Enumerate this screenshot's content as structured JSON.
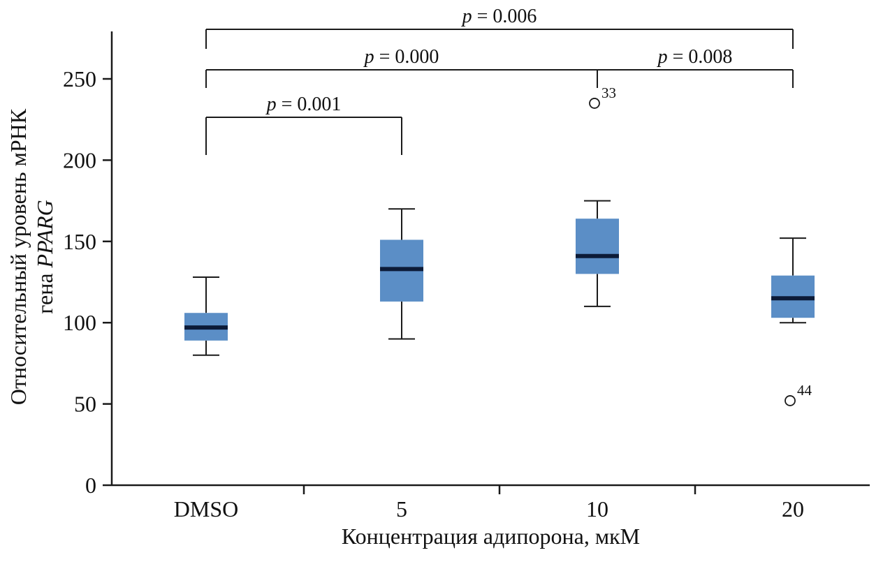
{
  "chart_data": {
    "type": "boxplot",
    "title": "",
    "xlabel": "Концентрация адипорона, мкМ",
    "ylabel_line1": "Относительный уровень мРНК",
    "ylabel_line2_prefix": "гена ",
    "ylabel_gene": "PPARG",
    "categories": [
      "DMSO",
      "5",
      "10",
      "20"
    ],
    "ylim": [
      0,
      279
    ],
    "yticks": [
      0,
      50,
      100,
      150,
      200,
      250
    ],
    "grid": false,
    "legend": "none",
    "boxes": [
      {
        "category": "DMSO",
        "whisker_low": 80,
        "q1": 89,
        "median": 97,
        "q3": 106,
        "whisker_high": 128,
        "outliers": []
      },
      {
        "category": "5",
        "whisker_low": 90,
        "q1": 113,
        "median": 133,
        "q3": 151,
        "whisker_high": 170,
        "outliers": []
      },
      {
        "category": "10",
        "whisker_low": 110,
        "q1": 130,
        "median": 141,
        "q3": 164,
        "whisker_high": 175,
        "outliers": [
          {
            "value": 235,
            "label": "33"
          }
        ]
      },
      {
        "category": "20",
        "whisker_low": 100,
        "q1": 103,
        "median": 115,
        "q3": 129,
        "whisker_high": 152,
        "outliers": [
          {
            "value": 52,
            "label": "44"
          }
        ]
      }
    ],
    "p_symbol": "p",
    "comparisons": [
      {
        "from": "DMSO",
        "to": "5",
        "a": 0,
        "b": 1,
        "p": "0.001",
        "level": 1
      },
      {
        "from": "DMSO",
        "to": "10",
        "a": 0,
        "b": 2,
        "p": "0.000",
        "level": 2
      },
      {
        "from": "10",
        "to": "20",
        "a": 2,
        "b": 3,
        "p": "0.008",
        "level": 2
      },
      {
        "from": "DMSO",
        "to": "20",
        "a": 0,
        "b": 3,
        "p": "0.006",
        "level": 3
      }
    ],
    "colors": {
      "box_fill": "#5b8ec6",
      "median": "#0c1b38",
      "line": "#1a1a1a",
      "background": "#ffffff"
    }
  }
}
